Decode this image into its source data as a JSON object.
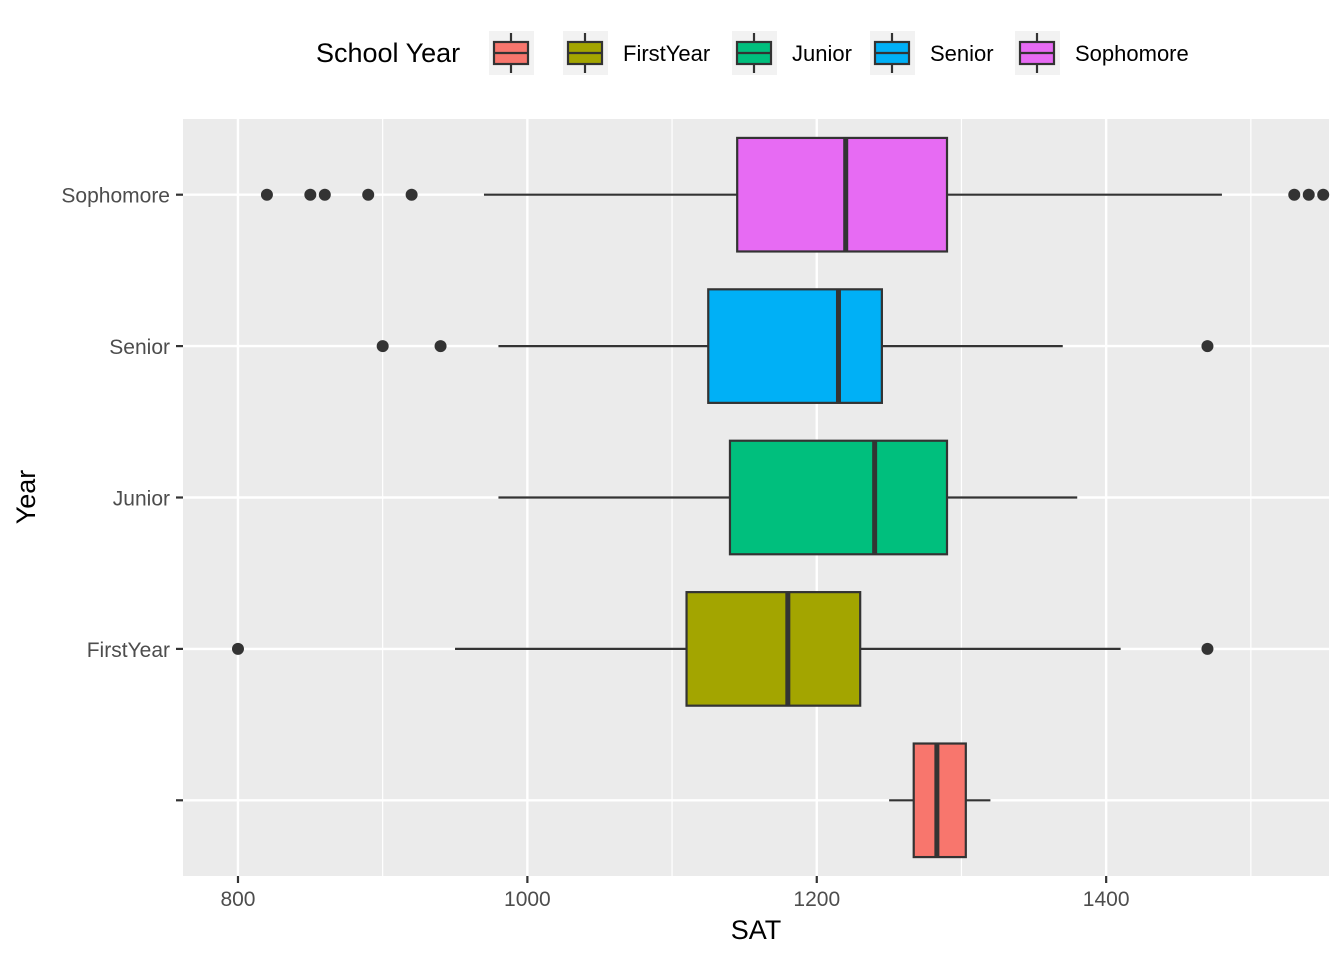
{
  "chart_data": {
    "type": "boxplot",
    "orientation": "horizontal",
    "xlabel": "SAT",
    "ylabel": "Year",
    "xlim": [
      762,
      1554
    ],
    "xticks": [
      800,
      1000,
      1200,
      1400
    ],
    "grid": true,
    "legend": {
      "title": "School Year",
      "position": "top",
      "entries": [
        {
          "label": "",
          "color": "#F8766D"
        },
        {
          "label": "FirstYear",
          "color": "#A3A500"
        },
        {
          "label": "Junior",
          "color": "#00BF7D"
        },
        {
          "label": "Senior",
          "color": "#00B0F6"
        },
        {
          "label": "Sophomore",
          "color": "#E76BF3"
        }
      ]
    },
    "categories": [
      "",
      "FirstYear",
      "Junior",
      "Senior",
      "Sophomore"
    ],
    "boxes": [
      {
        "category": "",
        "color": "#F8766D",
        "whisker_low": 1250,
        "q1": 1267,
        "median": 1283,
        "q3": 1303,
        "whisker_high": 1320,
        "outliers": []
      },
      {
        "category": "FirstYear",
        "color": "#A3A500",
        "whisker_low": 950,
        "q1": 1110,
        "median": 1180,
        "q3": 1230,
        "whisker_high": 1410,
        "outliers": [
          800,
          1470
        ]
      },
      {
        "category": "Junior",
        "color": "#00BF7D",
        "whisker_low": 980,
        "q1": 1140,
        "median": 1240,
        "q3": 1290,
        "whisker_high": 1380,
        "outliers": []
      },
      {
        "category": "Senior",
        "color": "#00B0F6",
        "whisker_low": 980,
        "q1": 1125,
        "median": 1215,
        "q3": 1245,
        "whisker_high": 1370,
        "outliers": [
          900,
          940,
          1470
        ]
      },
      {
        "category": "Sophomore",
        "color": "#E76BF3",
        "whisker_low": 970,
        "q1": 1145,
        "median": 1220,
        "q3": 1290,
        "whisker_high": 1480,
        "outliers": [
          820,
          850,
          860,
          890,
          920,
          1530,
          1540,
          1550
        ]
      }
    ]
  }
}
